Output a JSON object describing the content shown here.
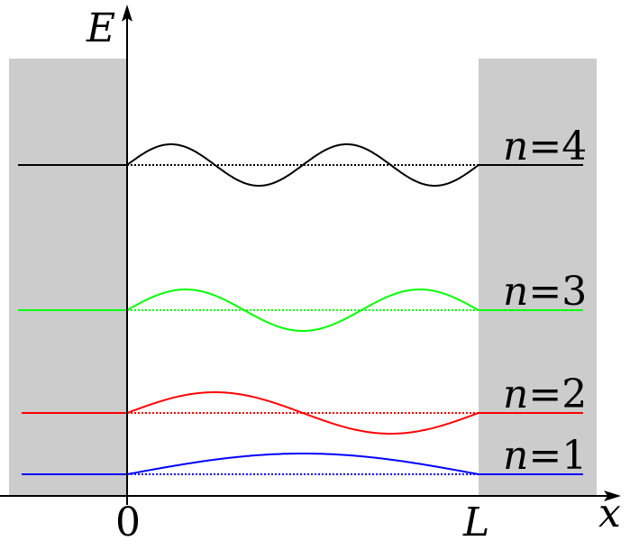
{
  "axes": {
    "y_label": "E",
    "x_label": "x",
    "x_origin_label": "0",
    "x_end_label": "L"
  },
  "levels": [
    {
      "n": 1,
      "label_var": "n",
      "label_rest": "=1",
      "color": "#0000ff"
    },
    {
      "n": 2,
      "label_var": "n",
      "label_rest": "=2",
      "color": "#ff0000"
    },
    {
      "n": 3,
      "label_var": "n",
      "label_rest": "=3",
      "color": "#00ff00"
    },
    {
      "n": 4,
      "label_var": "n",
      "label_rest": "=4",
      "color": "#000000"
    }
  ],
  "wall_color": "#cccccc"
}
